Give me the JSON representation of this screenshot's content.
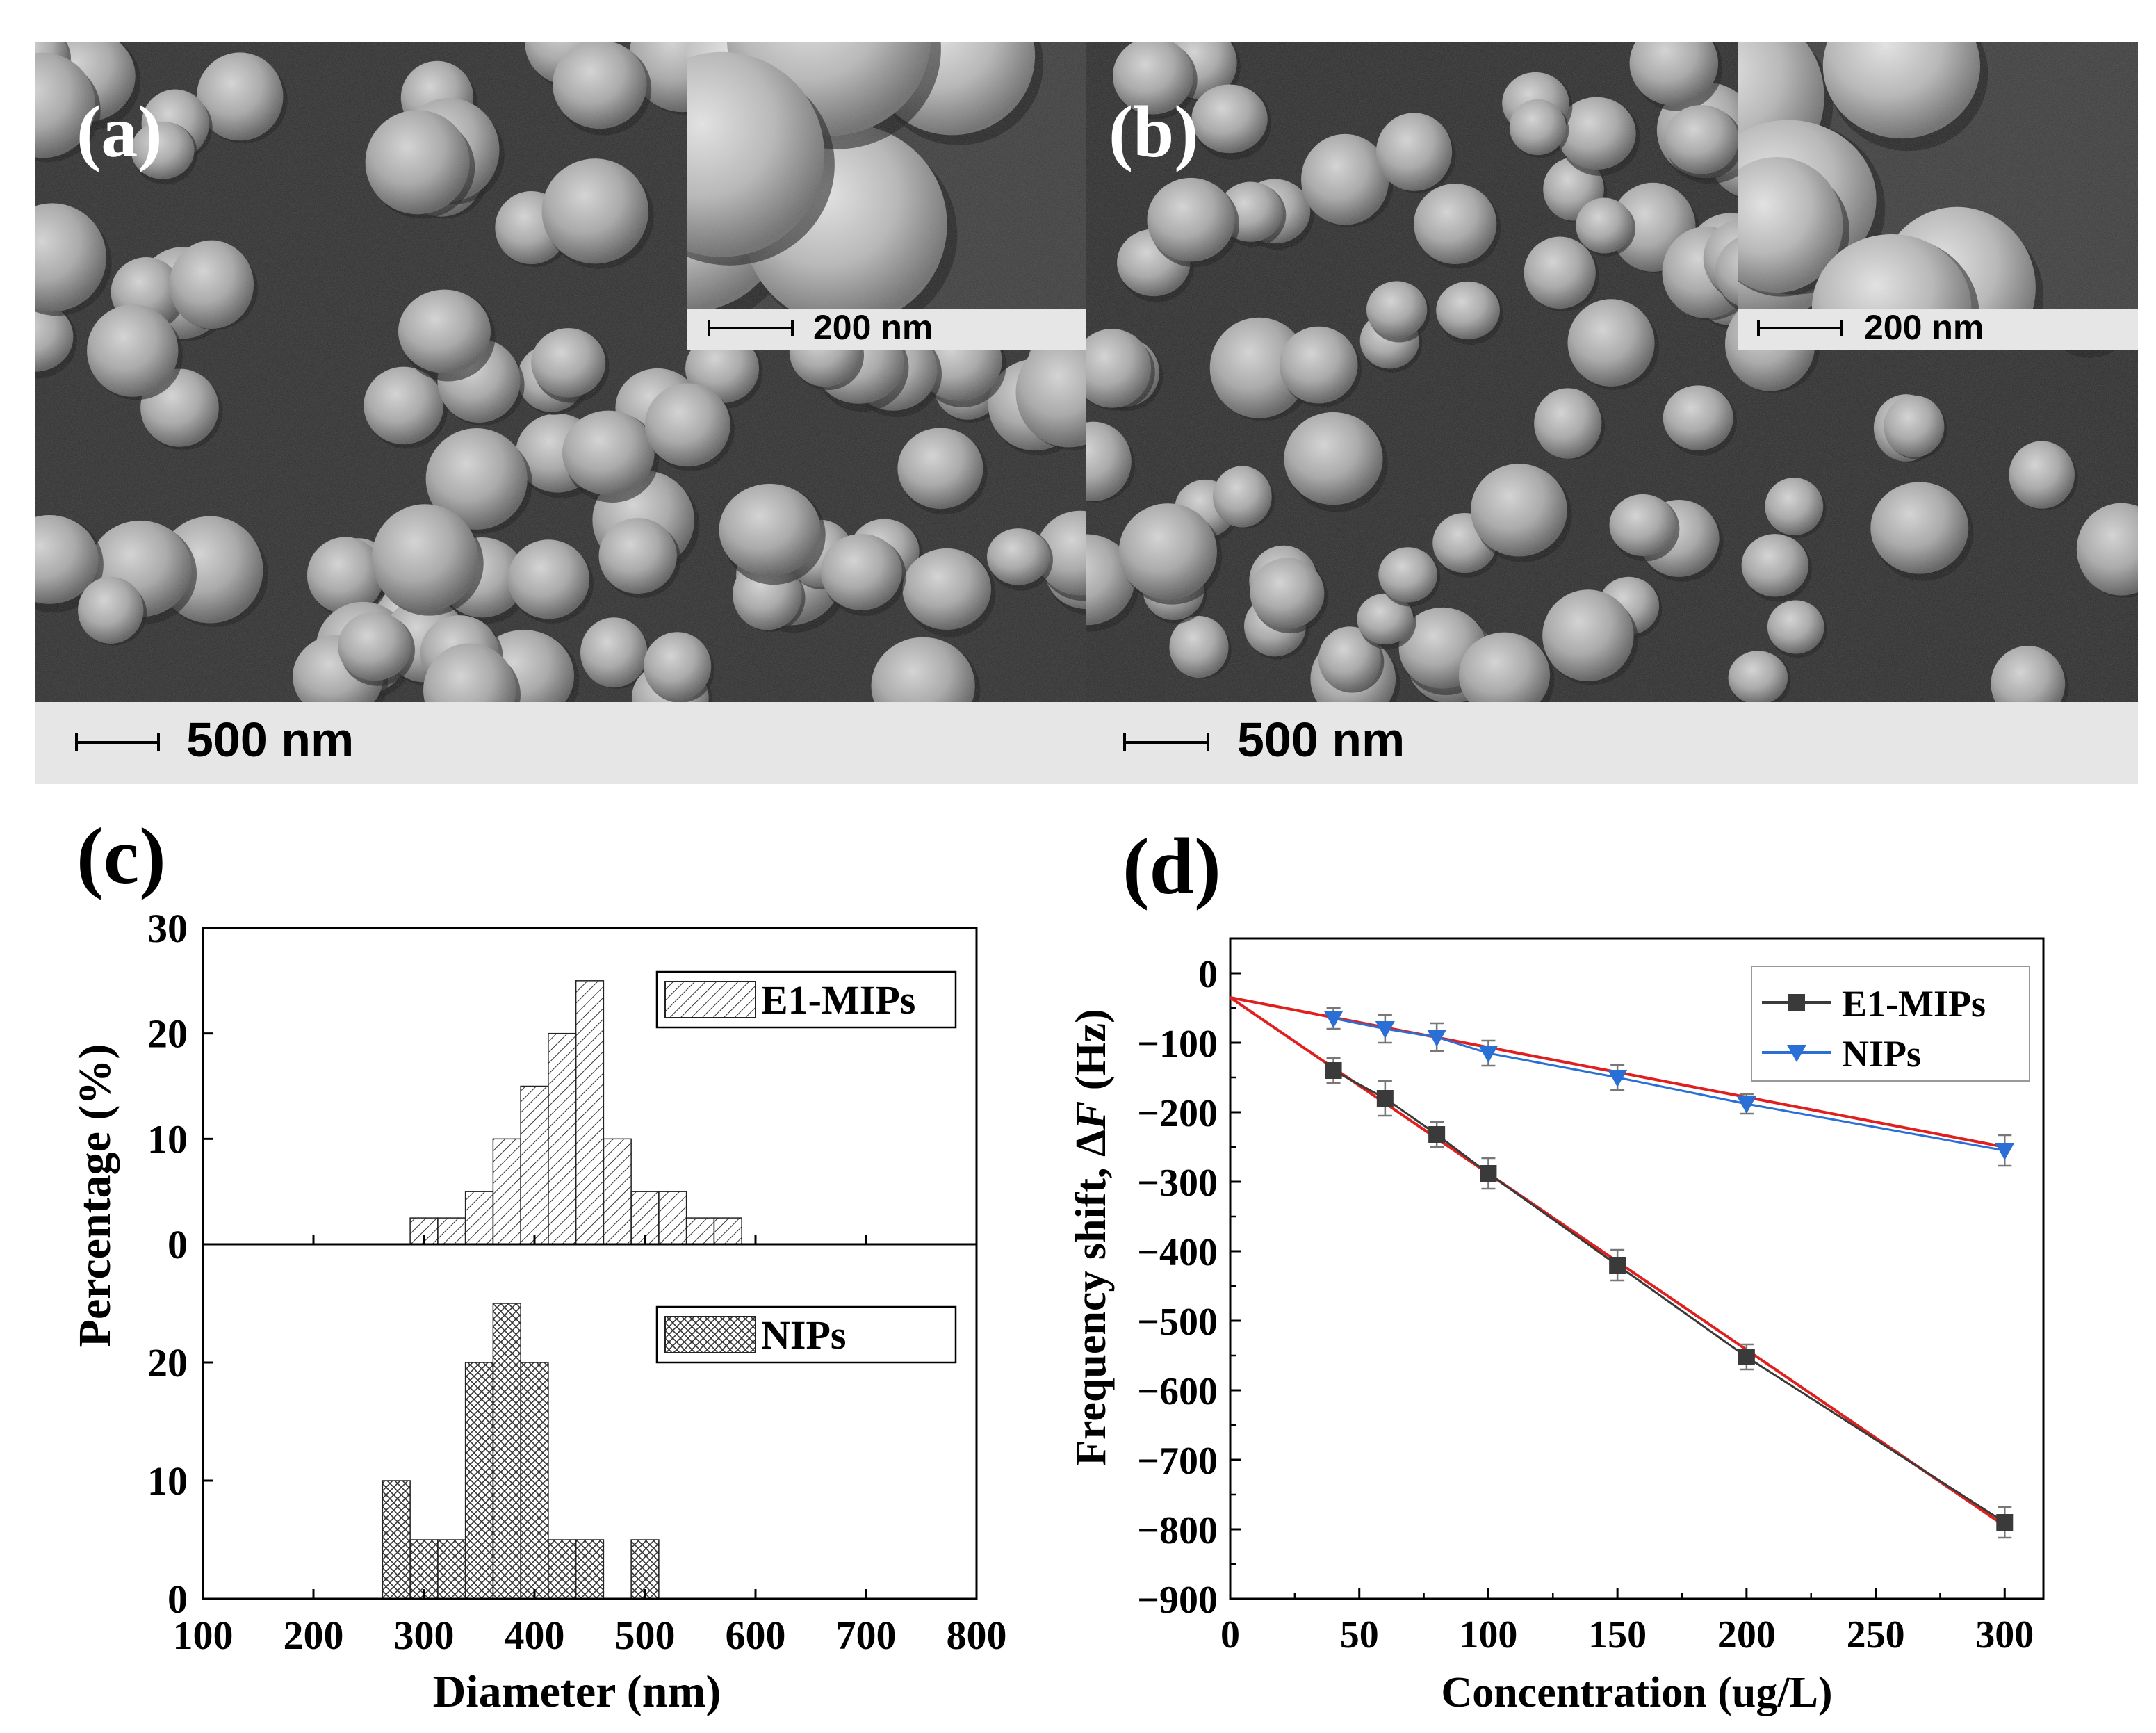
{
  "panels": {
    "a": {
      "label": "(a)",
      "inset_scale": "200 nm",
      "scale": "500 nm"
    },
    "b": {
      "label": "(b)",
      "inset_scale": "200 nm",
      "scale": "500 nm"
    },
    "c": {
      "label": "(c)"
    },
    "d": {
      "label": "(d)"
    }
  },
  "chart_data": [
    {
      "type": "bar",
      "panel": "c",
      "description": "Particle size distribution histograms (stacked panels sharing x axis)",
      "xlabel": "Diameter (nm)",
      "ylabel": "Percentage (%)",
      "xlim": [
        100,
        800
      ],
      "x_ticks": [
        "100",
        "200",
        "300",
        "400",
        "500",
        "600",
        "700",
        "800"
      ],
      "bin_width": 25,
      "series": [
        {
          "name": "E1-MIPs",
          "pattern": "diagonal",
          "ylim": [
            0,
            30
          ],
          "y_ticks": [
            "0",
            "10",
            "20",
            "30"
          ],
          "bin_centers": [
            300,
            325,
            350,
            375,
            400,
            425,
            450,
            475,
            500,
            525,
            550,
            575
          ],
          "values": [
            2.5,
            2.5,
            5,
            10,
            15,
            20,
            25,
            10,
            5,
            5,
            2.5,
            2.5
          ]
        },
        {
          "name": "NIPs",
          "pattern": "crosshatch",
          "ylim": [
            0,
            30
          ],
          "y_ticks": [
            "0",
            "10",
            "20"
          ],
          "bin_centers": [
            275,
            300,
            325,
            350,
            375,
            400,
            425,
            450,
            475,
            500
          ],
          "values": [
            10,
            5,
            5,
            20,
            25,
            20,
            5,
            5,
            0,
            5
          ]
        }
      ]
    },
    {
      "type": "line",
      "panel": "d",
      "xlabel": "Concentration (ug/L)",
      "ylabel_prefix": "Frequency shift, Δ",
      "ylabel_italic": "F",
      "ylabel_suffix": " (Hz)",
      "xlim": [
        0,
        315
      ],
      "ylim": [
        -900,
        50
      ],
      "x_ticks": [
        0,
        50,
        100,
        150,
        200,
        250,
        300
      ],
      "y_ticks": [
        0,
        -100,
        -200,
        -300,
        -400,
        -500,
        -600,
        -700,
        -800,
        -900
      ],
      "x_tick_labels": [
        "0",
        "50",
        "100",
        "150",
        "200",
        "250",
        "300"
      ],
      "y_tick_labels": [
        "0",
        "−100",
        "−200",
        "−300",
        "−400",
        "−500",
        "−600",
        "−700",
        "−800",
        "−900"
      ],
      "legend_position": "top-right",
      "series": [
        {
          "name": "E1-MIPs",
          "marker": "square",
          "color": "#3a3a3a",
          "x": [
            40,
            60,
            80,
            100,
            150,
            200,
            300
          ],
          "y": [
            -140,
            -180,
            -232,
            -288,
            -420,
            -552,
            -790
          ],
          "err": [
            18,
            25,
            18,
            22,
            22,
            18,
            22
          ]
        },
        {
          "name": "NIPs",
          "marker": "triangle-down",
          "color": "#2a6fd6",
          "x": [
            40,
            60,
            80,
            100,
            150,
            200,
            300
          ],
          "y": [
            -65,
            -80,
            -92,
            -115,
            -150,
            -188,
            -255
          ],
          "err": [
            15,
            20,
            20,
            18,
            18,
            14,
            22
          ]
        }
      ],
      "fit_lines": [
        {
          "color": "#e0201e",
          "from": [
            0,
            -35
          ],
          "to": [
            300,
            -795
          ]
        },
        {
          "color": "#e0201e",
          "from": [
            0,
            -35
          ],
          "to": [
            300,
            -250
          ]
        }
      ]
    }
  ]
}
